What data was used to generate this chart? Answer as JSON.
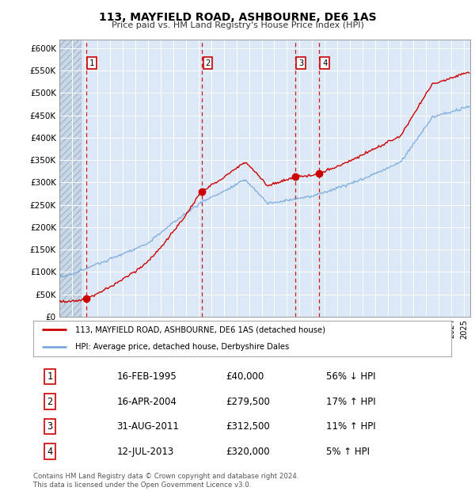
{
  "title": "113, MAYFIELD ROAD, ASHBOURNE, DE6 1AS",
  "subtitle": "Price paid vs. HM Land Registry's House Price Index (HPI)",
  "ylim": [
    0,
    620000
  ],
  "yticks": [
    0,
    50000,
    100000,
    150000,
    200000,
    250000,
    300000,
    350000,
    400000,
    450000,
    500000,
    550000,
    600000
  ],
  "xlim_start": 1993.0,
  "xlim_end": 2025.5,
  "sale_dates": [
    1995.125,
    2004.292,
    2011.667,
    2013.542
  ],
  "sale_prices": [
    40000,
    279500,
    312500,
    320000
  ],
  "sale_labels": [
    "1",
    "2",
    "3",
    "4"
  ],
  "sale_color": "#cc0000",
  "hpi_color": "#7aaadd",
  "legend_entries": [
    "113, MAYFIELD ROAD, ASHBOURNE, DE6 1AS (detached house)",
    "HPI: Average price, detached house, Derbyshire Dales"
  ],
  "table_rows": [
    [
      "1",
      "16-FEB-1995",
      "£40,000",
      "56% ↓ HPI"
    ],
    [
      "2",
      "16-APR-2004",
      "£279,500",
      "17% ↑ HPI"
    ],
    [
      "3",
      "31-AUG-2011",
      "£312,500",
      "11% ↑ HPI"
    ],
    [
      "4",
      "12-JUL-2013",
      "£320,000",
      "5% ↑ HPI"
    ]
  ],
  "footer": "Contains HM Land Registry data © Crown copyright and database right 2024.\nThis data is licensed under the Open Government Licence v3.0.",
  "background_plot": "#dce8f5",
  "hatch_end": 1994.7
}
